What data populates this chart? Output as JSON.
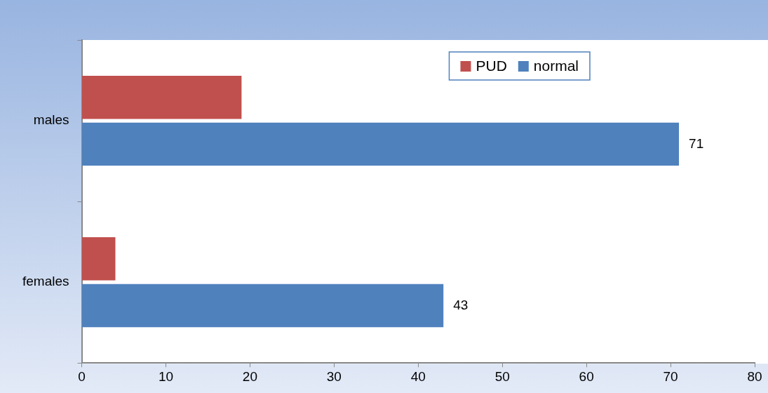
{
  "chart_data": {
    "type": "bar",
    "orientation": "horizontal",
    "categories": [
      "males",
      "females"
    ],
    "series": [
      {
        "name": "PUD",
        "color": "#c0504d",
        "values": [
          19,
          4
        ]
      },
      {
        "name": "normal",
        "color": "#4f81bd",
        "values": [
          71,
          43
        ],
        "value_labels": [
          "71",
          "43"
        ]
      }
    ],
    "xlim": [
      0,
      80
    ],
    "xticks": [
      0,
      10,
      20,
      30,
      40,
      50,
      60,
      70,
      80
    ],
    "grid": false,
    "legend": "top right"
  }
}
